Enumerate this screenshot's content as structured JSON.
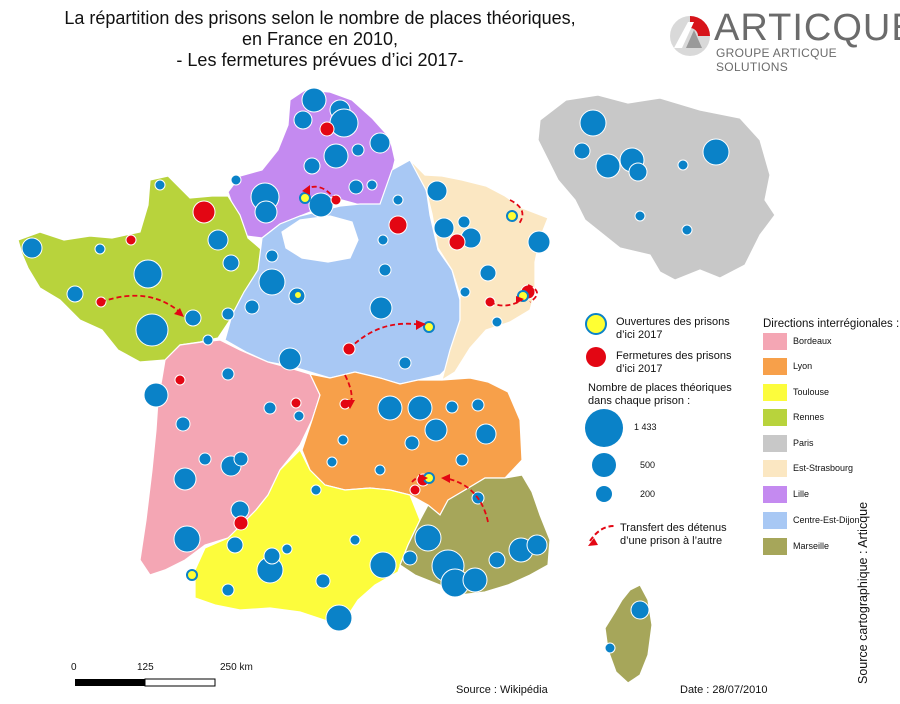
{
  "title": {
    "line1": "La répartition des prisons selon le nombre de places théoriques,",
    "line2": "en France en 2010,",
    "line3": "- Les fermetures prévues d’ici 2017-"
  },
  "logo": {
    "name": "ARTICQUE",
    "subtitle": "GROUPE ARTICQUE SOLUTIONS"
  },
  "legend": {
    "openings_l1": "Ouvertures des prisons",
    "openings_l2": "d’ici 2017",
    "closures_l1": "Fermetures des prisons",
    "closures_l2": "d’ici 2017",
    "size_title_l1": "Nombre de places théoriques",
    "size_title_l2": "dans chaque prison :",
    "sizes": [
      "1 433",
      "500",
      "200"
    ],
    "transfer_l1": "Transfert des détenus",
    "transfer_l2": "d’une prison à l’autre",
    "colors": {
      "opening": "#ffff33",
      "closure": "#e30613",
      "prison": "#0a82c8",
      "transfer": "#e30613"
    }
  },
  "directions": {
    "title": "Directions interrégionales :",
    "items": [
      {
        "label": "Bordeaux",
        "color": "#f4a6b4"
      },
      {
        "label": "Lyon",
        "color": "#f7a04a"
      },
      {
        "label": "Toulouse",
        "color": "#fcfc3c"
      },
      {
        "label": "Rennes",
        "color": "#b8d33c"
      },
      {
        "label": "Paris",
        "color": "#c8c8c8"
      },
      {
        "label": "Est-Strasbourg",
        "color": "#fbe7c2"
      },
      {
        "label": "Lille",
        "color": "#c48af0"
      },
      {
        "label": "Centre-Est-Dijon",
        "color": "#a8c8f4"
      },
      {
        "label": "Marseille",
        "color": "#a6a65a"
      }
    ]
  },
  "scale": {
    "labels": [
      "0",
      "125",
      "250 km"
    ]
  },
  "footer": {
    "source": "Source : Wikipédia",
    "date": "Date : 28/07/2010"
  },
  "side_credit": "Source cartographique : Articque"
}
